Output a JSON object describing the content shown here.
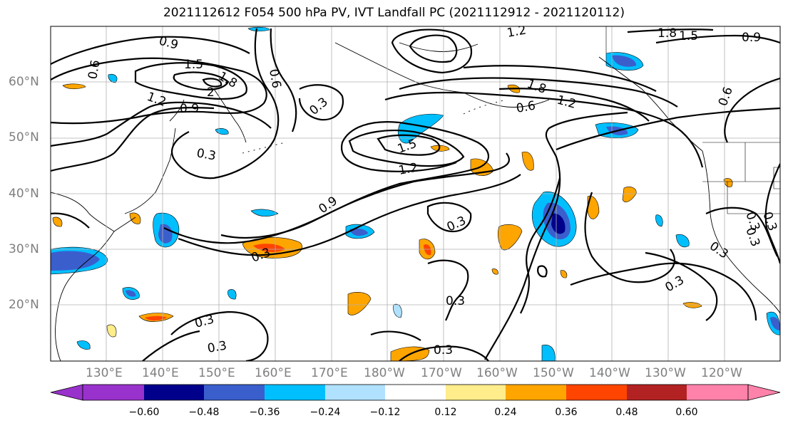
{
  "title": "2021112612 F054 500 hPa PV, IVT Landfall PC (2021112912 - 2021120112)",
  "map": {
    "projection": "cylindrical",
    "lon_range": [
      120,
      244
    ],
    "lat_range": [
      10,
      70
    ],
    "lat_labels": [
      "20°N",
      "30°N",
      "40°N",
      "50°N",
      "60°N"
    ],
    "lon_labels": [
      "130°E",
      "140°E",
      "150°E",
      "160°E",
      "170°E",
      "180°W",
      "170°W",
      "160°W",
      "150°W",
      "140°W",
      "130°W",
      "120°W"
    ],
    "contour_labels": [
      "0.9",
      "1.5",
      "1.8",
      "2",
      "1.2",
      "0.9",
      "0.6",
      "0.3",
      "0.3",
      "1.2",
      "1.8",
      "1.5",
      "0.9",
      "0.6",
      "1.8",
      "1.2",
      "0.6",
      "0.6",
      "0.3",
      "1.5",
      "1.2",
      "0.9",
      "0.3",
      "0.3",
      "0.3",
      "0.3",
      "0.3",
      "0.3",
      "0.3",
      "0.3",
      "0.3",
      "0.3"
    ]
  },
  "colorbar": {
    "colors": [
      "#9932cc",
      "#00008b",
      "#3a5fcd",
      "#00bfff",
      "#b0e2ff",
      "#ffffff",
      "#ffec8b",
      "#ffa500",
      "#ff4500",
      "#b22222",
      "#ff82ab"
    ],
    "tick_labels": [
      "−0.60",
      "−0.48",
      "−0.36",
      "−0.24",
      "−0.12",
      "0.12",
      "0.24",
      "0.36",
      "0.48",
      "0.60"
    ]
  }
}
